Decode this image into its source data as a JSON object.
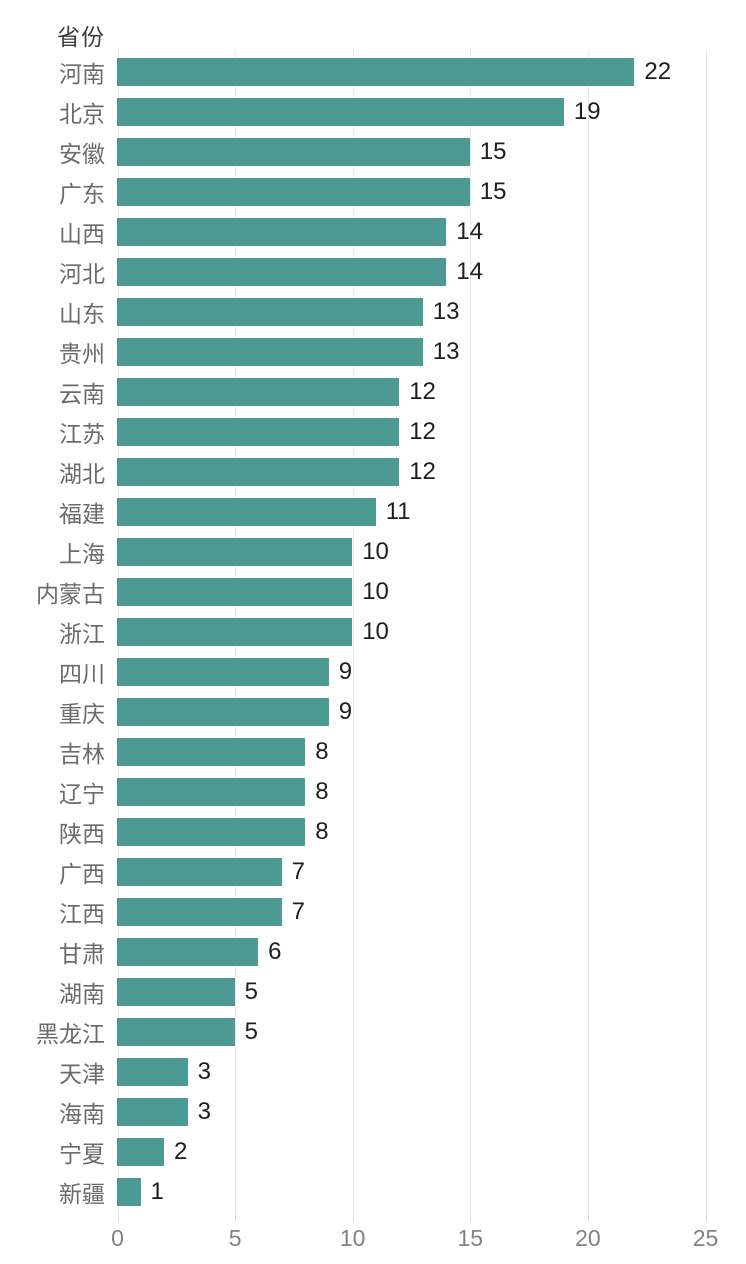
{
  "colors": {
    "bar": "#4b9a94",
    "category_label": "#6b6b6b",
    "value_label": "#1e1e1e",
    "axis_label": "#828282",
    "gridline": "#e9e9e9",
    "title": "#3c3c3c",
    "background": "#ffffff"
  },
  "chart_data": {
    "type": "bar",
    "orientation": "horizontal",
    "title": "省份",
    "xlabel": "",
    "ylabel": "省份",
    "categories": [
      "河南",
      "北京",
      "安徽",
      "广东",
      "山西",
      "河北",
      "山东",
      "贵州",
      "云南",
      "江苏",
      "湖北",
      "福建",
      "上海",
      "内蒙古",
      "浙江",
      "四川",
      "重庆",
      "吉林",
      "辽宁",
      "陕西",
      "广西",
      "江西",
      "甘肃",
      "湖南",
      "黑龙江",
      "天津",
      "海南",
      "宁夏",
      "新疆"
    ],
    "values": [
      22,
      19,
      15,
      15,
      14,
      14,
      13,
      13,
      12,
      12,
      12,
      11,
      10,
      10,
      10,
      9,
      9,
      8,
      8,
      8,
      7,
      7,
      6,
      5,
      5,
      3,
      3,
      2,
      1
    ],
    "xlim": [
      0,
      25
    ],
    "x_ticks": [
      0,
      5,
      10,
      15,
      20,
      25
    ],
    "grid": true,
    "legend": "none",
    "value_labels_shown": true
  }
}
